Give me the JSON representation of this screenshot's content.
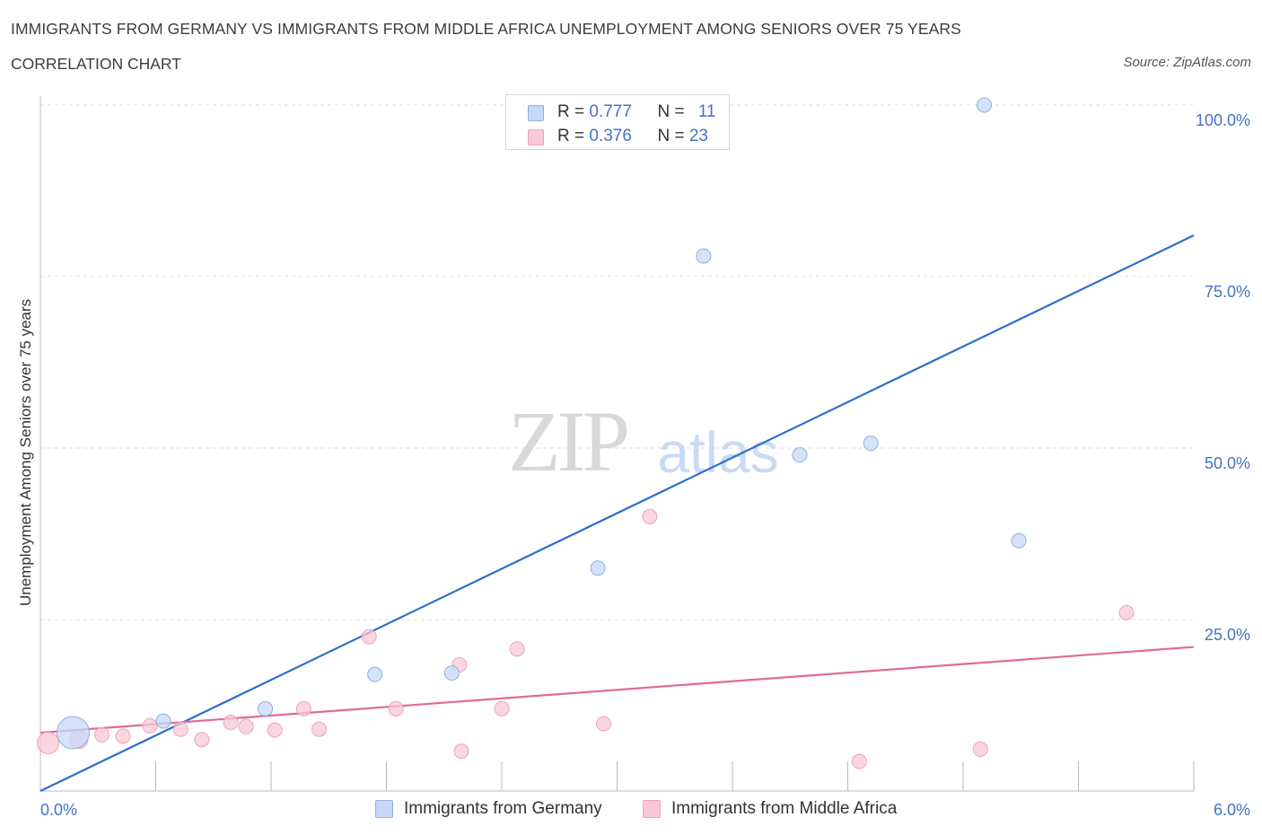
{
  "header": {
    "title": "IMMIGRANTS FROM GERMANY VS IMMIGRANTS FROM MIDDLE AFRICA UNEMPLOYMENT AMONG SENIORS OVER 75 YEARS",
    "subtitle": "CORRELATION CHART",
    "source": "Source: ZipAtlas.com"
  },
  "watermark": {
    "zip": "ZIP",
    "atlas": "atlas"
  },
  "legend_top": {
    "germany": {
      "r_label": "R = ",
      "r_value": "0.777",
      "n_label": "N = ",
      "n_value": "11"
    },
    "africa": {
      "r_label": "R = ",
      "r_value": "0.376",
      "n_label": "N = ",
      "n_value": "23"
    }
  },
  "colors": {
    "germany_fill": "#c5d9f7",
    "germany_stroke": "#8fb0e3",
    "germany_line": "#2f6fcc",
    "africa_fill": "#f8c8d6",
    "africa_stroke": "#eea3ba",
    "africa_line": "#e06a96",
    "tick_text": "#4472c4",
    "grid": "#dddddd"
  },
  "chart_data": {
    "type": "scatter",
    "title": "IMMIGRANTS FROM GERMANY VS IMMIGRANTS FROM MIDDLE AFRICA UNEMPLOYMENT AMONG SENIORS OVER 75 YEARS",
    "xlabel": "",
    "ylabel": "Unemployment Among Seniors over 75 years",
    "xlim": [
      0,
      6
    ],
    "ylim": [
      0,
      100
    ],
    "x_tick_labels": [
      "0.0%",
      "6.0%"
    ],
    "y_ticks": [
      25,
      50,
      75,
      100
    ],
    "y_tick_labels": [
      "25.0%",
      "50.0%",
      "75.0%",
      "100.0%"
    ],
    "legend_position": "bottom",
    "series": [
      {
        "name": "Immigrants from Germany",
        "color": "#c5d9f7",
        "points": [
          {
            "x": 0.17,
            "y": 8.5,
            "size": 18
          },
          {
            "x": 0.64,
            "y": 10.2,
            "size": 8
          },
          {
            "x": 1.17,
            "y": 12.0,
            "size": 8
          },
          {
            "x": 1.74,
            "y": 17.0,
            "size": 8
          },
          {
            "x": 2.14,
            "y": 17.2,
            "size": 8
          },
          {
            "x": 2.9,
            "y": 32.5,
            "size": 8
          },
          {
            "x": 3.45,
            "y": 78.0,
            "size": 8
          },
          {
            "x": 3.95,
            "y": 49.0,
            "size": 8
          },
          {
            "x": 4.32,
            "y": 50.7,
            "size": 8
          },
          {
            "x": 4.91,
            "y": 100.0,
            "size": 8
          },
          {
            "x": 5.09,
            "y": 36.5,
            "size": 8
          }
        ],
        "trend": {
          "x": [
            0,
            6
          ],
          "y": [
            0,
            81
          ]
        }
      },
      {
        "name": "Immigrants from Middle Africa",
        "color": "#f8c8d6",
        "points": [
          {
            "x": 0.04,
            "y": 7.0,
            "size": 12
          },
          {
            "x": 0.2,
            "y": 7.5,
            "size": 10
          },
          {
            "x": 0.32,
            "y": 8.2,
            "size": 8
          },
          {
            "x": 0.43,
            "y": 8.0,
            "size": 8
          },
          {
            "x": 0.57,
            "y": 9.5,
            "size": 8
          },
          {
            "x": 0.73,
            "y": 9.0,
            "size": 8
          },
          {
            "x": 0.84,
            "y": 7.5,
            "size": 8
          },
          {
            "x": 0.99,
            "y": 10.0,
            "size": 8
          },
          {
            "x": 1.07,
            "y": 9.4,
            "size": 8
          },
          {
            "x": 1.22,
            "y": 8.9,
            "size": 8
          },
          {
            "x": 1.37,
            "y": 12.0,
            "size": 8
          },
          {
            "x": 1.45,
            "y": 9.0,
            "size": 8
          },
          {
            "x": 1.71,
            "y": 22.5,
            "size": 8
          },
          {
            "x": 1.85,
            "y": 12.0,
            "size": 8
          },
          {
            "x": 2.18,
            "y": 18.4,
            "size": 8
          },
          {
            "x": 2.19,
            "y": 5.8,
            "size": 8
          },
          {
            "x": 2.4,
            "y": 12.0,
            "size": 8
          },
          {
            "x": 2.48,
            "y": 20.7,
            "size": 8
          },
          {
            "x": 2.93,
            "y": 9.8,
            "size": 8
          },
          {
            "x": 3.17,
            "y": 40.0,
            "size": 8
          },
          {
            "x": 4.26,
            "y": 4.3,
            "size": 8
          },
          {
            "x": 4.89,
            "y": 6.1,
            "size": 8
          },
          {
            "x": 5.65,
            "y": 26.0,
            "size": 8
          }
        ],
        "trend": {
          "x": [
            0,
            6
          ],
          "y": [
            8.5,
            21
          ]
        }
      }
    ]
  }
}
